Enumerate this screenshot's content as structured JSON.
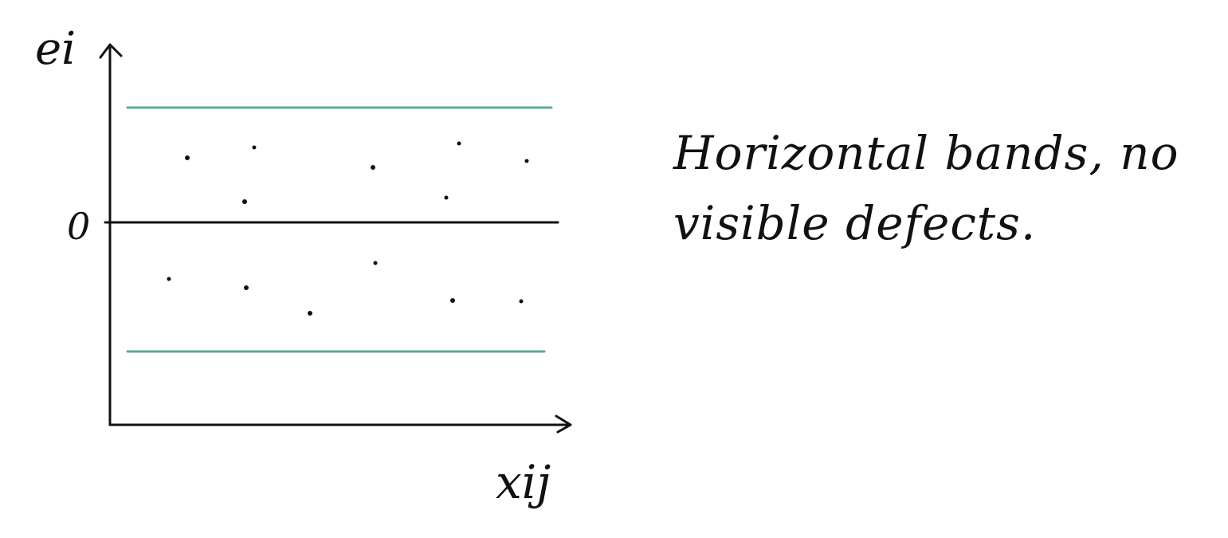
{
  "diagram": {
    "y_axis_label": "ei",
    "x_axis_label": "xij",
    "zero_label": "0",
    "band_color": "#5aab8f",
    "ink_color": "#111111"
  },
  "note": {
    "line1": "Horizontal bands, no",
    "line2": "visible defects."
  }
}
